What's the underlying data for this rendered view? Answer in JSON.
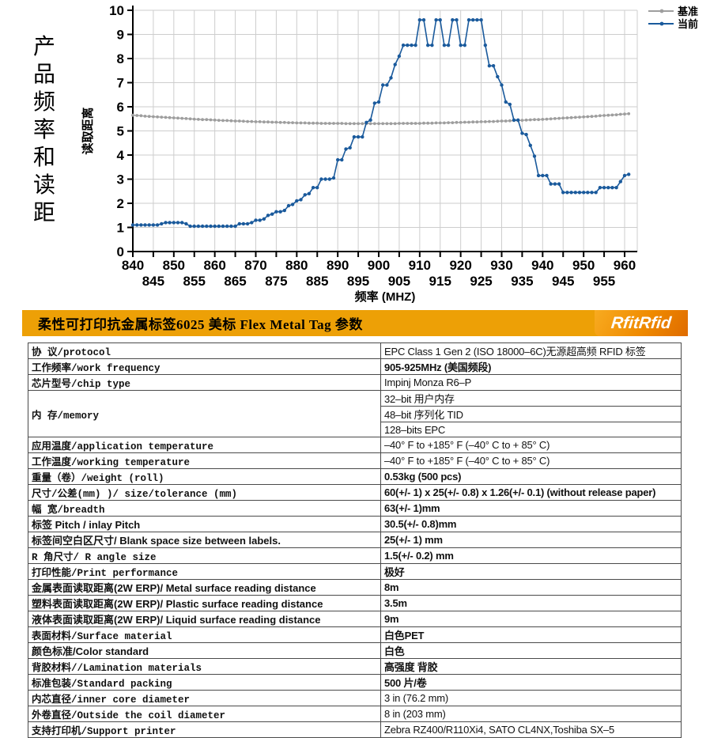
{
  "sidebar": {
    "title": "产品频率和读距"
  },
  "chart_data": {
    "type": "line",
    "title": "",
    "xlabel": "频率 (MHZ)",
    "ylabel": "读取距离",
    "x_start": 840,
    "x_step": 1,
    "xlim": [
      840,
      963
    ],
    "ylim": [
      0,
      10
    ],
    "grid": true,
    "grid_color": "#cdcdcd",
    "legend_position": "top-right",
    "x_minor_tick_step": 5,
    "y_ticks": [
      0,
      1,
      2,
      3,
      4,
      5,
      6,
      7,
      8,
      9,
      10
    ],
    "x_ticks_row1": [
      840,
      850,
      860,
      870,
      880,
      890,
      900,
      910,
      920,
      930,
      940,
      950,
      960
    ],
    "x_ticks_row2": [
      845,
      855,
      865,
      875,
      885,
      895,
      905,
      915,
      925,
      935,
      945,
      955
    ],
    "series": [
      {
        "name": "基准",
        "color": "#9e9e9e",
        "values": [
          5.65,
          5.64,
          5.63,
          5.61,
          5.6,
          5.59,
          5.58,
          5.57,
          5.56,
          5.55,
          5.54,
          5.53,
          5.52,
          5.51,
          5.5,
          5.49,
          5.48,
          5.47,
          5.47,
          5.46,
          5.45,
          5.44,
          5.43,
          5.43,
          5.42,
          5.41,
          5.41,
          5.4,
          5.39,
          5.39,
          5.38,
          5.38,
          5.37,
          5.37,
          5.36,
          5.36,
          5.35,
          5.35,
          5.34,
          5.34,
          5.33,
          5.33,
          5.33,
          5.32,
          5.32,
          5.32,
          5.31,
          5.31,
          5.31,
          5.31,
          5.31,
          5.31,
          5.3,
          5.3,
          5.3,
          5.3,
          5.3,
          5.3,
          5.3,
          5.3,
          5.3,
          5.3,
          5.3,
          5.3,
          5.3,
          5.31,
          5.31,
          5.31,
          5.31,
          5.31,
          5.31,
          5.32,
          5.32,
          5.32,
          5.33,
          5.33,
          5.33,
          5.34,
          5.34,
          5.35,
          5.35,
          5.36,
          5.36,
          5.37,
          5.37,
          5.38,
          5.38,
          5.39,
          5.39,
          5.4,
          5.41,
          5.41,
          5.42,
          5.43,
          5.43,
          5.44,
          5.45,
          5.46,
          5.47,
          5.47,
          5.48,
          5.49,
          5.5,
          5.51,
          5.52,
          5.53,
          5.54,
          5.55,
          5.56,
          5.57,
          5.58,
          5.59,
          5.6,
          5.61,
          5.63,
          5.64,
          5.65,
          5.66,
          5.67,
          5.69,
          5.7,
          5.71
        ]
      },
      {
        "name": "当前",
        "color": "#1a5a9c",
        "values": [
          1.1,
          1.1,
          1.1,
          1.1,
          1.1,
          1.1,
          1.1,
          1.15,
          1.2,
          1.2,
          1.2,
          1.2,
          1.2,
          1.15,
          1.05,
          1.05,
          1.05,
          1.05,
          1.05,
          1.05,
          1.05,
          1.05,
          1.05,
          1.05,
          1.05,
          1.05,
          1.15,
          1.15,
          1.15,
          1.2,
          1.3,
          1.3,
          1.35,
          1.5,
          1.55,
          1.65,
          1.65,
          1.7,
          1.9,
          1.95,
          2.1,
          2.15,
          2.35,
          2.4,
          2.65,
          2.65,
          3.0,
          3.0,
          3.0,
          3.05,
          3.8,
          3.8,
          4.25,
          4.3,
          4.75,
          4.75,
          4.75,
          5.35,
          5.45,
          6.15,
          6.2,
          6.9,
          6.9,
          7.2,
          7.75,
          8.1,
          8.55,
          8.55,
          8.55,
          8.55,
          9.6,
          9.6,
          8.55,
          8.55,
          9.6,
          9.6,
          8.55,
          8.55,
          9.6,
          9.6,
          8.55,
          8.55,
          9.6,
          9.6,
          9.6,
          9.6,
          8.55,
          7.7,
          7.7,
          7.25,
          6.9,
          6.2,
          6.1,
          5.45,
          5.45,
          4.9,
          4.85,
          4.4,
          3.95,
          3.15,
          3.15,
          3.15,
          2.8,
          2.8,
          2.8,
          2.45,
          2.45,
          2.45,
          2.45,
          2.45,
          2.45,
          2.45,
          2.45,
          2.45,
          2.65,
          2.65,
          2.65,
          2.65,
          2.65,
          2.9,
          3.15,
          3.2
        ]
      }
    ]
  },
  "header": {
    "title": "柔性可打印抗金属标签6025 美标 Flex Metal Tag 参数",
    "logo_text": "RfitRfid",
    "bar_color": "#eda006"
  },
  "table": {
    "rows": [
      {
        "label": "协    议/protocol",
        "mono": true,
        "value": "EPC Class 1 Gen 2 (ISO 18000–6C)无源超高频 RFID 标签",
        "vbold": false
      },
      {
        "label": "工作频率/work frequency",
        "mono": true,
        "value": "905-925MHz (美国频段)",
        "vbold": true
      },
      {
        "label": "芯片型号/chip type",
        "mono": true,
        "value": "Impinj Monza R6–P",
        "vbold": false
      },
      {
        "label": "内    存/memory",
        "mono": true,
        "values": [
          "32–bit 用户内存",
          "48–bit 序列化 TID",
          "128–bits EPC"
        ],
        "vbold": false
      },
      {
        "label": "应用温度/application temperature",
        "mono": true,
        "value": "–40° F to +185° F (–40° C to + 85° C)",
        "vbold": false
      },
      {
        "label": "工作温度/working temperature",
        "mono": true,
        "value": "–40° F to +185° F (–40° C to + 85° C)",
        "vbold": false
      },
      {
        "label": "重量（卷）/weight (roll)",
        "mono": true,
        "value": "0.53kg (500 pcs)",
        "vbold": true
      },
      {
        "label": "尺寸/公差(mm) )/ size/tolerance (mm)",
        "mono": true,
        "value": "60(+/- 1) x 25(+/- 0.8) x 1.26(+/- 0.1) (without release paper)",
        "vbold": true
      },
      {
        "label": "幅    宽/breadth",
        "mono": true,
        "value": "63(+/- 1)mm",
        "vbold": true
      },
      {
        "label": "标签 Pitch / inlay Pitch",
        "mono": false,
        "value": "30.5(+/- 0.8)mm",
        "vbold": true
      },
      {
        "label": "标签间空白区尺寸/ Blank space size between labels.",
        "mono": false,
        "value": "25(+/- 1) mm",
        "vbold": true
      },
      {
        "label": "R 角尺寸/ R  angle  size",
        "mono": true,
        "value": "1.5(+/- 0.2) mm",
        "vbold": true
      },
      {
        "label": "打印性能/Print performance",
        "mono": true,
        "value": "极好",
        "vbold": true
      },
      {
        "label": "金属表面读取距离(2W ERP)/ Metal surface reading distance",
        "mono": false,
        "value": "8m",
        "vbold": true
      },
      {
        "label": "塑料表面读取距离(2W ERP)/ Plastic surface reading distance",
        "mono": false,
        "value": "3.5m",
        "vbold": true
      },
      {
        "label": "液体表面读取距离(2W ERP)/ Liquid surface reading distance",
        "mono": false,
        "value": "9m",
        "vbold": true
      },
      {
        "label": "表面材料/Surface material",
        "mono": true,
        "value": "白色PET",
        "vbold": true
      },
      {
        "label": "颜色标准/Color standard",
        "mono": false,
        "value": "白色",
        "vbold": true
      },
      {
        "label": "背胶材料//Lamination materials",
        "mono": true,
        "value": "高强度 背胶",
        "vbold": true
      },
      {
        "label": "标准包装/Standard packing",
        "mono": true,
        "value": "500 片/卷",
        "vbold": true
      },
      {
        "label": "内芯直径/inner core diameter",
        "mono": true,
        "value": "3 in (76.2 mm)",
        "vbold": false
      },
      {
        "label": "外卷直径/Outside the coil diameter",
        "mono": true,
        "value": "8 in (203 mm)",
        "vbold": false
      },
      {
        "label": "支持打印机/Support printer",
        "mono": true,
        "value": "Zebra RZ400/R110Xi4, SATO CL4NX,Toshiba SX–5",
        "vbold": false
      }
    ]
  }
}
